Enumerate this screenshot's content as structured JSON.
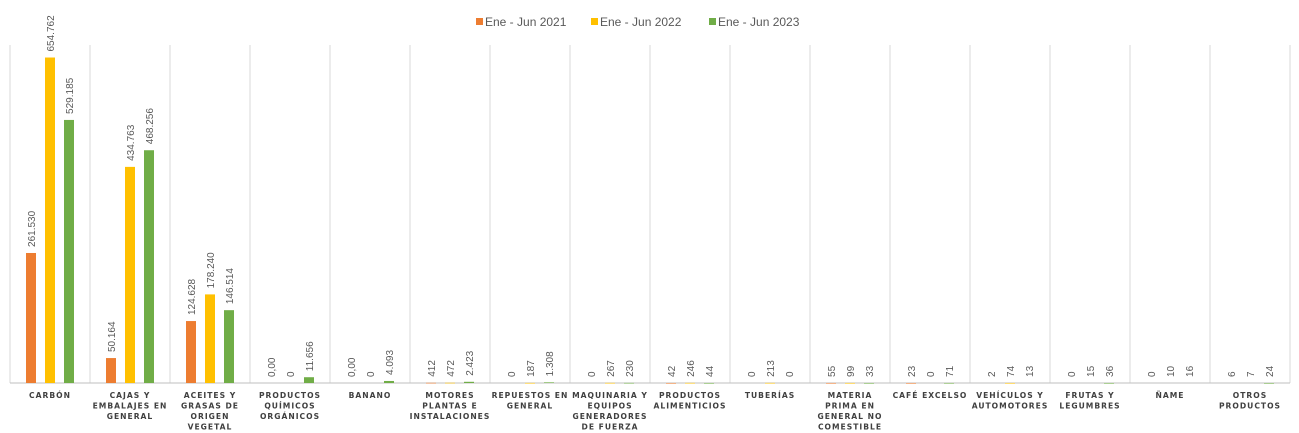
{
  "chart_data": {
    "type": "bar",
    "title": "",
    "xlabel": "",
    "ylabel": "",
    "ylim": [
      0,
      690000
    ],
    "grid": "vertical category separators",
    "legend_position": "top",
    "categories": [
      [
        "CARBÓN"
      ],
      [
        "CAJAS Y",
        "EMBALAJES EN",
        "GENERAL"
      ],
      [
        "ACEITES Y",
        "GRASAS DE",
        "ORIGEN",
        "VEGETAL"
      ],
      [
        "PRODUCTOS",
        "QUÍMICOS",
        "ORGÁNICOS"
      ],
      [
        "BANANO"
      ],
      [
        "MOTORES",
        "PLANTAS E",
        "INSTALACIONES"
      ],
      [
        "REPUESTOS EN",
        "GENERAL"
      ],
      [
        "MAQUINARIA Y",
        "EQUIPOS",
        "GENERADORES",
        "DE FUERZA"
      ],
      [
        "PRODUCTOS",
        "ALIMENTICIOS"
      ],
      [
        "TUBERÍAS"
      ],
      [
        "MATERIA",
        "PRIMA EN",
        "GENERAL NO",
        "COMESTIBLE"
      ],
      [
        "CAFÉ EXCELSO"
      ],
      [
        "VEHÍCULOS Y",
        "AUTOMOTORES"
      ],
      [
        "FRUTAS Y",
        "LEGUMBRES"
      ],
      [
        "ÑAME"
      ],
      [
        "OTROS",
        "PRODUCTOS"
      ]
    ],
    "series": [
      {
        "name": "Ene - Jun 2021",
        "color": "#ed7d31",
        "values": [
          261530,
          50164,
          124628,
          0,
          0,
          412,
          0,
          0,
          42,
          0,
          55,
          23,
          2,
          0,
          0,
          6
        ],
        "labels": [
          "261.530",
          "50.164",
          "124.628",
          "0,00",
          "0,00",
          "412",
          "0",
          "0",
          "42",
          "0",
          "55",
          "23",
          "2",
          "0",
          "0",
          "6"
        ]
      },
      {
        "name": "Ene - Jun 2022",
        "color": "#ffc000",
        "values": [
          654762,
          434763,
          178240,
          0,
          0,
          472,
          187,
          267,
          246,
          213,
          99,
          0,
          74,
          15,
          10,
          7
        ],
        "labels": [
          "654.762",
          "434.763",
          "178.240",
          "0",
          "0",
          "472",
          "187",
          "267",
          "246",
          "213",
          "99",
          "0",
          "74",
          "15",
          "10",
          "7"
        ]
      },
      {
        "name": "Ene -  Jun 2023",
        "color": "#70ad47",
        "values": [
          529185,
          468256,
          146514,
          11656,
          4093,
          2423,
          1308,
          230,
          44,
          0,
          33,
          71,
          13,
          36,
          16,
          24
        ],
        "labels": [
          "529.185",
          "468.256",
          "146.514",
          "11.656",
          "4.093",
          "2.423",
          "1.308",
          "230",
          "44",
          "0",
          "33",
          "71",
          "13",
          "36",
          "16",
          "24"
        ]
      }
    ]
  }
}
